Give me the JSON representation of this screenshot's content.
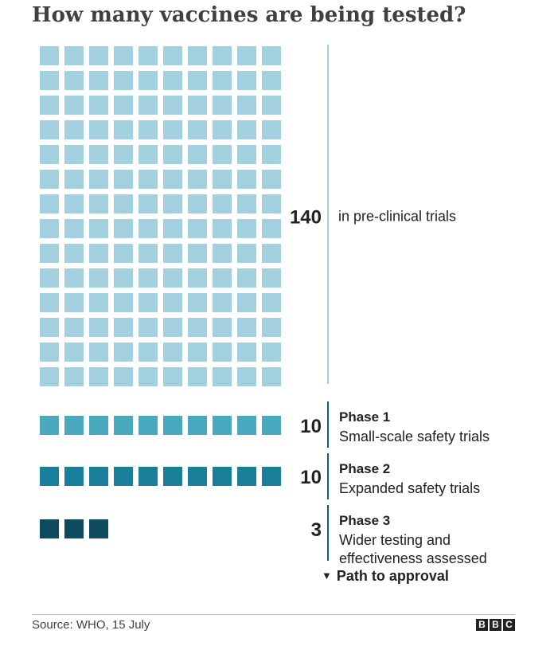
{
  "title": "How many vaccines are being tested?",
  "chart_data": {
    "type": "waffle",
    "groups": [
      {
        "value": 140,
        "count_label": "140",
        "name": "",
        "description": "in pre-clinical trials",
        "color": "#a3d0de"
      },
      {
        "value": 10,
        "count_label": "10",
        "name": "Phase 1",
        "description": "Small-scale safety trials",
        "color": "#4ba9bf"
      },
      {
        "value": 10,
        "count_label": "10",
        "name": "Phase 2",
        "description": "Expanded safety trials",
        "color": "#1a7f9b"
      },
      {
        "value": 3,
        "count_label": "3",
        "name": "Phase 3",
        "description": "Wider testing and effectiveness assessed",
        "description_lines": [
          "Wider testing and",
          "effectiveness assessed"
        ],
        "color": "#0f4b5e"
      }
    ],
    "squares_per_row": 10,
    "annotation": "Path to approval",
    "line_color": "#145d70"
  },
  "footer": {
    "source": "Source: WHO, 15 July",
    "logo_letters": [
      "B",
      "B",
      "C"
    ]
  }
}
